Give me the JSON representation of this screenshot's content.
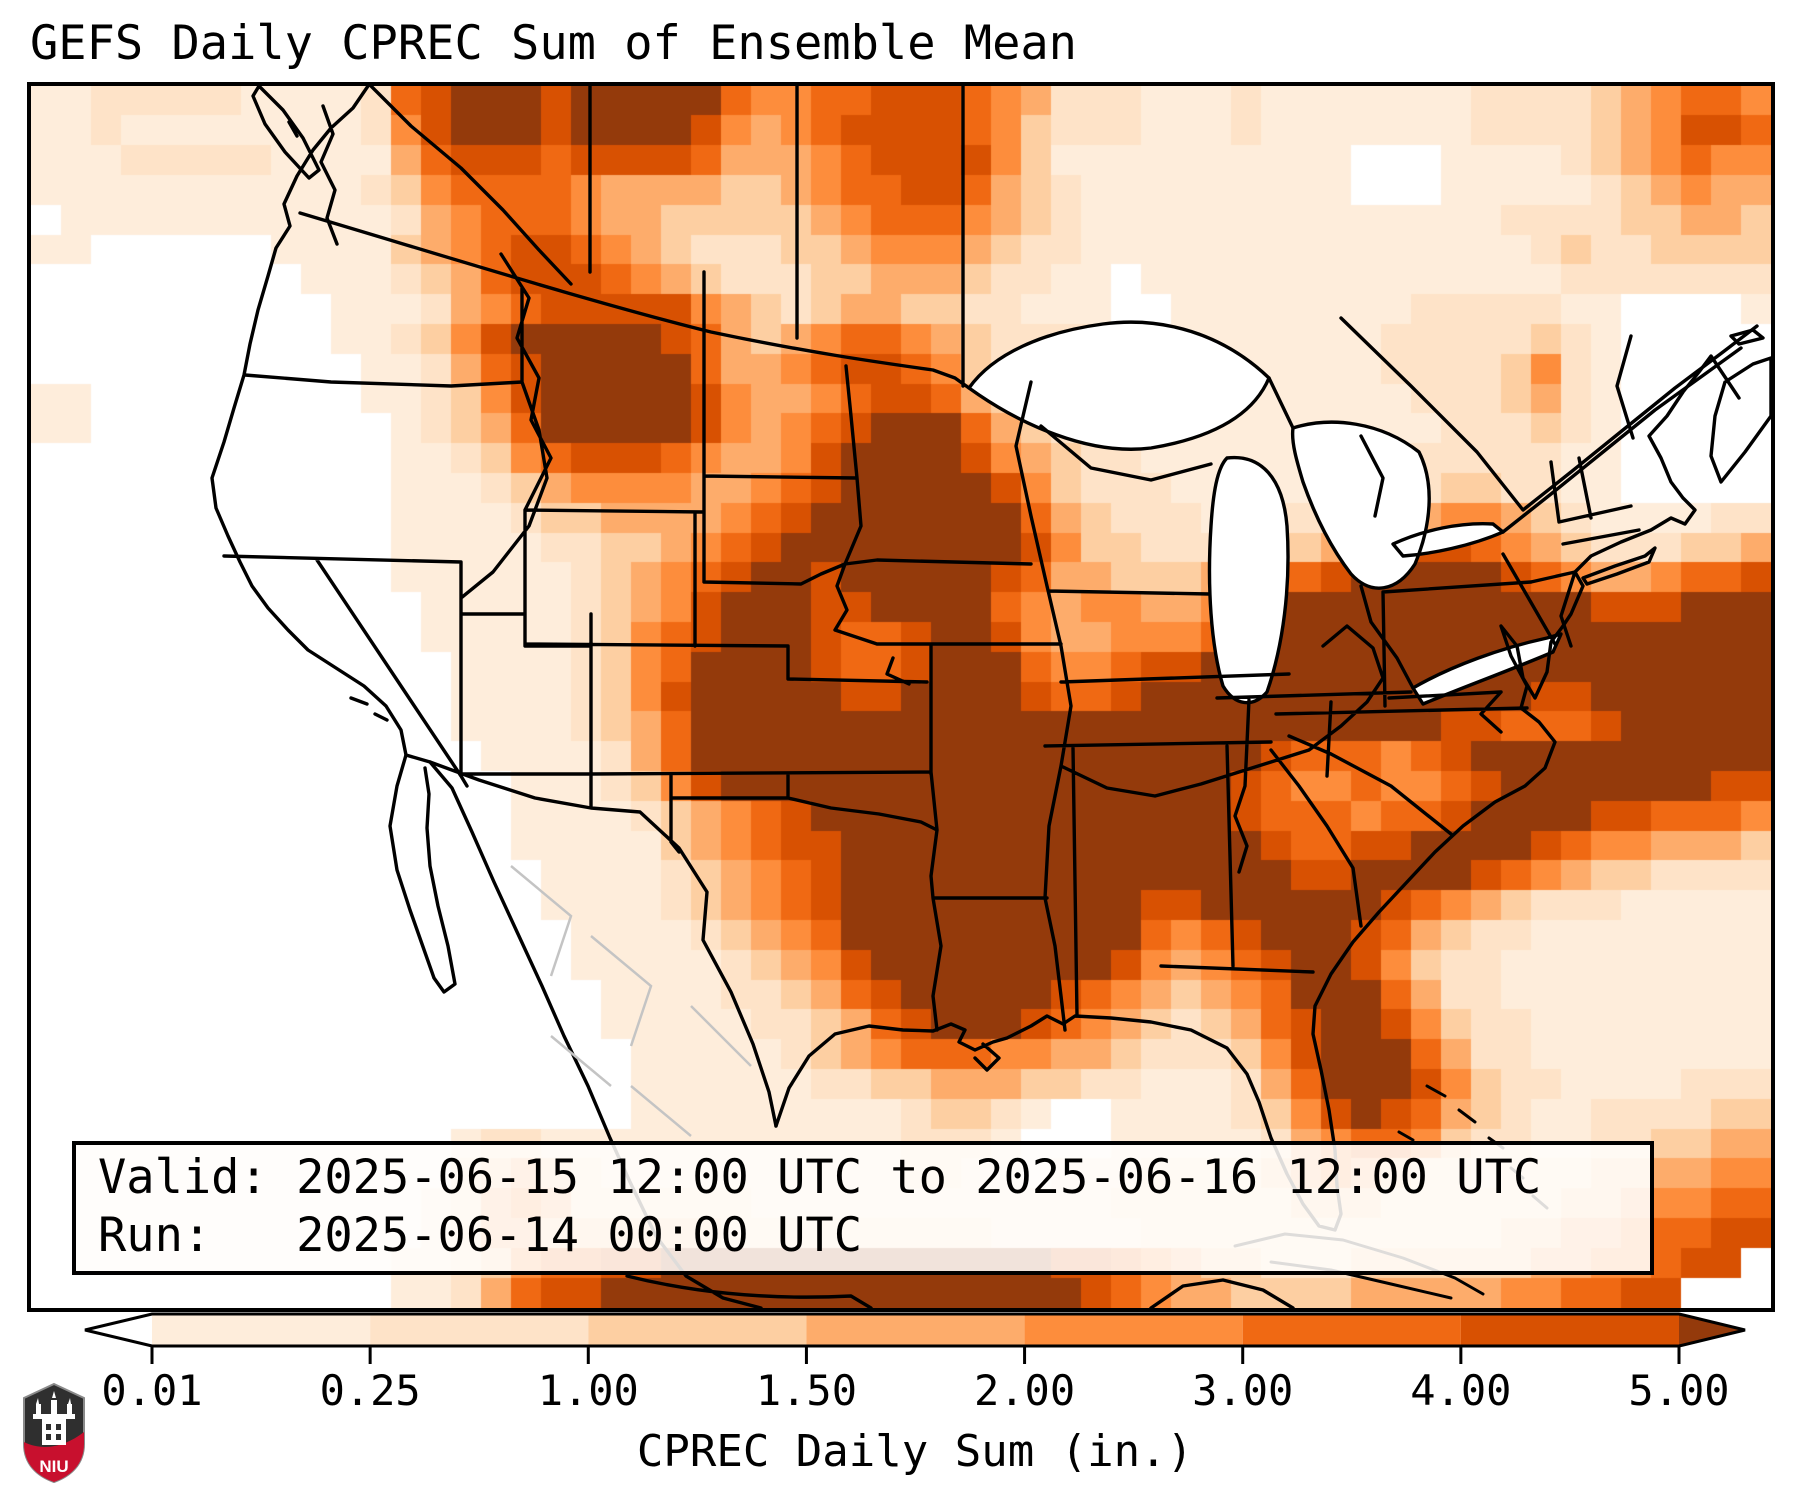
{
  "title": "GEFS Daily CPREC Sum of Ensemble Mean",
  "info_box": {
    "valid_line": "Valid: 2025-06-15 12:00 UTC to 2025-06-16 12:00 UTC",
    "run_line": "Run:   2025-06-14 00:00 UTC"
  },
  "colorbar": {
    "label": "CPREC Daily Sum (in.)",
    "tick_labels": [
      "0.01",
      "0.25",
      "1.00",
      "1.50",
      "2.00",
      "3.00",
      "4.00",
      "5.00"
    ],
    "under_arrow_color": "#ffffff",
    "over_arrow_color": "#943a0b",
    "segment_colors": [
      "#feeddb",
      "#fee3c8",
      "#fdcfa2",
      "#fdac6b",
      "#fd8d3c",
      "#f06913",
      "#d85102"
    ]
  },
  "logo": {
    "text": "NIU",
    "red": "#c8102e",
    "dark": "#2f2f2f"
  },
  "chart_data": {
    "type": "heatmap",
    "title": "GEFS Daily CPREC Sum of Ensemble Mean",
    "colorbar_label": "CPREC Daily Sum (in.)",
    "level_boundaries_in": [
      0.01,
      0.25,
      1.0,
      1.5,
      2.0,
      3.0,
      4.0,
      5.0
    ],
    "legend_position": "bottom",
    "extend": "both",
    "palette": [
      "#ffffff",
      "#feeddb",
      "#fee3c8",
      "#fdcfa2",
      "#fdac6b",
      "#fd8d3c",
      "#f06913",
      "#d85102",
      "#943a0b"
    ],
    "grid_cols": 58,
    "grid_rows": 41,
    "cells": [
      "1122222111126788878888865566777654222111211111112222345665",
      "1121111111125788878888754567777653222111211111112222345776",
      "1112222211114677767777644456777753111111111100011112345655",
      "1111111111123566665444433456677643211111111100011111234544",
      "0111111111112456665443333345666543211111111111111222233443",
      "1100000011113456776543222334555432211111111111111123223333",
      "0000000001112346777654322233444322110111111111111112222222",
      "0000000000111245677777543234433221110011111111222221100001",
      "0000000000112357888887643456654322221111111112222232100000",
      "0000000000011246788888644567765322221111111112222352100000",
      "1100000000011235788888754456776432221001111111222342100000",
      "1100000000001234688888754567888643221011111111122232100000",
      "0000000000001123567776544578888754322111111111222221100000",
      "0000000000001112345555445678888875322211111222233221100000",
      "0000000000001111233444456788888886432221222233455432111122",
      "0000000000001111122334567888888887533222333456776543222334",
      "0000000000001111112345678878888876443334566788888765445667",
      "0000000000000111112345788877888865455445688888888888777888",
      "0000000000000111112356788876678875445556788888888888888888",
      "0000000000000011112356888876678886556778888888888888888888",
      "0000000000000011112357888887788887667888888888888877888888",
      "0000000000000011112346888888888888888888888888877666788888",
      "0000000000000001111246888888888888888888876665678888888888",
      "0000000000000000111235788888888888888888765565567888888877",
      "0000000000000000111123456788888888888888766656678888776665",
      "0000000000000000111113456778888888888888876677888876554443",
      "0000000000000000011112345678888888888888887788887654332222",
      "0000000000000000011112345678888888888778888887654322211111",
      "0000000000000000001111234568888888888656788876432211111111",
      "0000000000000000001111123457888888887545678875322111111111",
      "0000000000000000000111122346788888765434568886422111111111",
      "0000000000000000000111112234678887654323467887532211111111",
      "0000000000000000000011111234566655443222357888642211111111",
      "0000000000000000000011111122334443322111246888753221111222",
      "0000000000000000000011111111123321001111235787643211222233",
      "0000000000000012211111111111122210001111124566532211223344",
      "0000000000000023432111111111122110111222234543221222334455",
      "0000000000000124542222221111111111112222223332222223345566",
      "0000000000000124433333322222222211111222222222222334456677",
      "0000000000001123566778888888888888776543322233333344556770",
      "0000000000001124677888888888888888876544333344444556677000"
    ]
  }
}
